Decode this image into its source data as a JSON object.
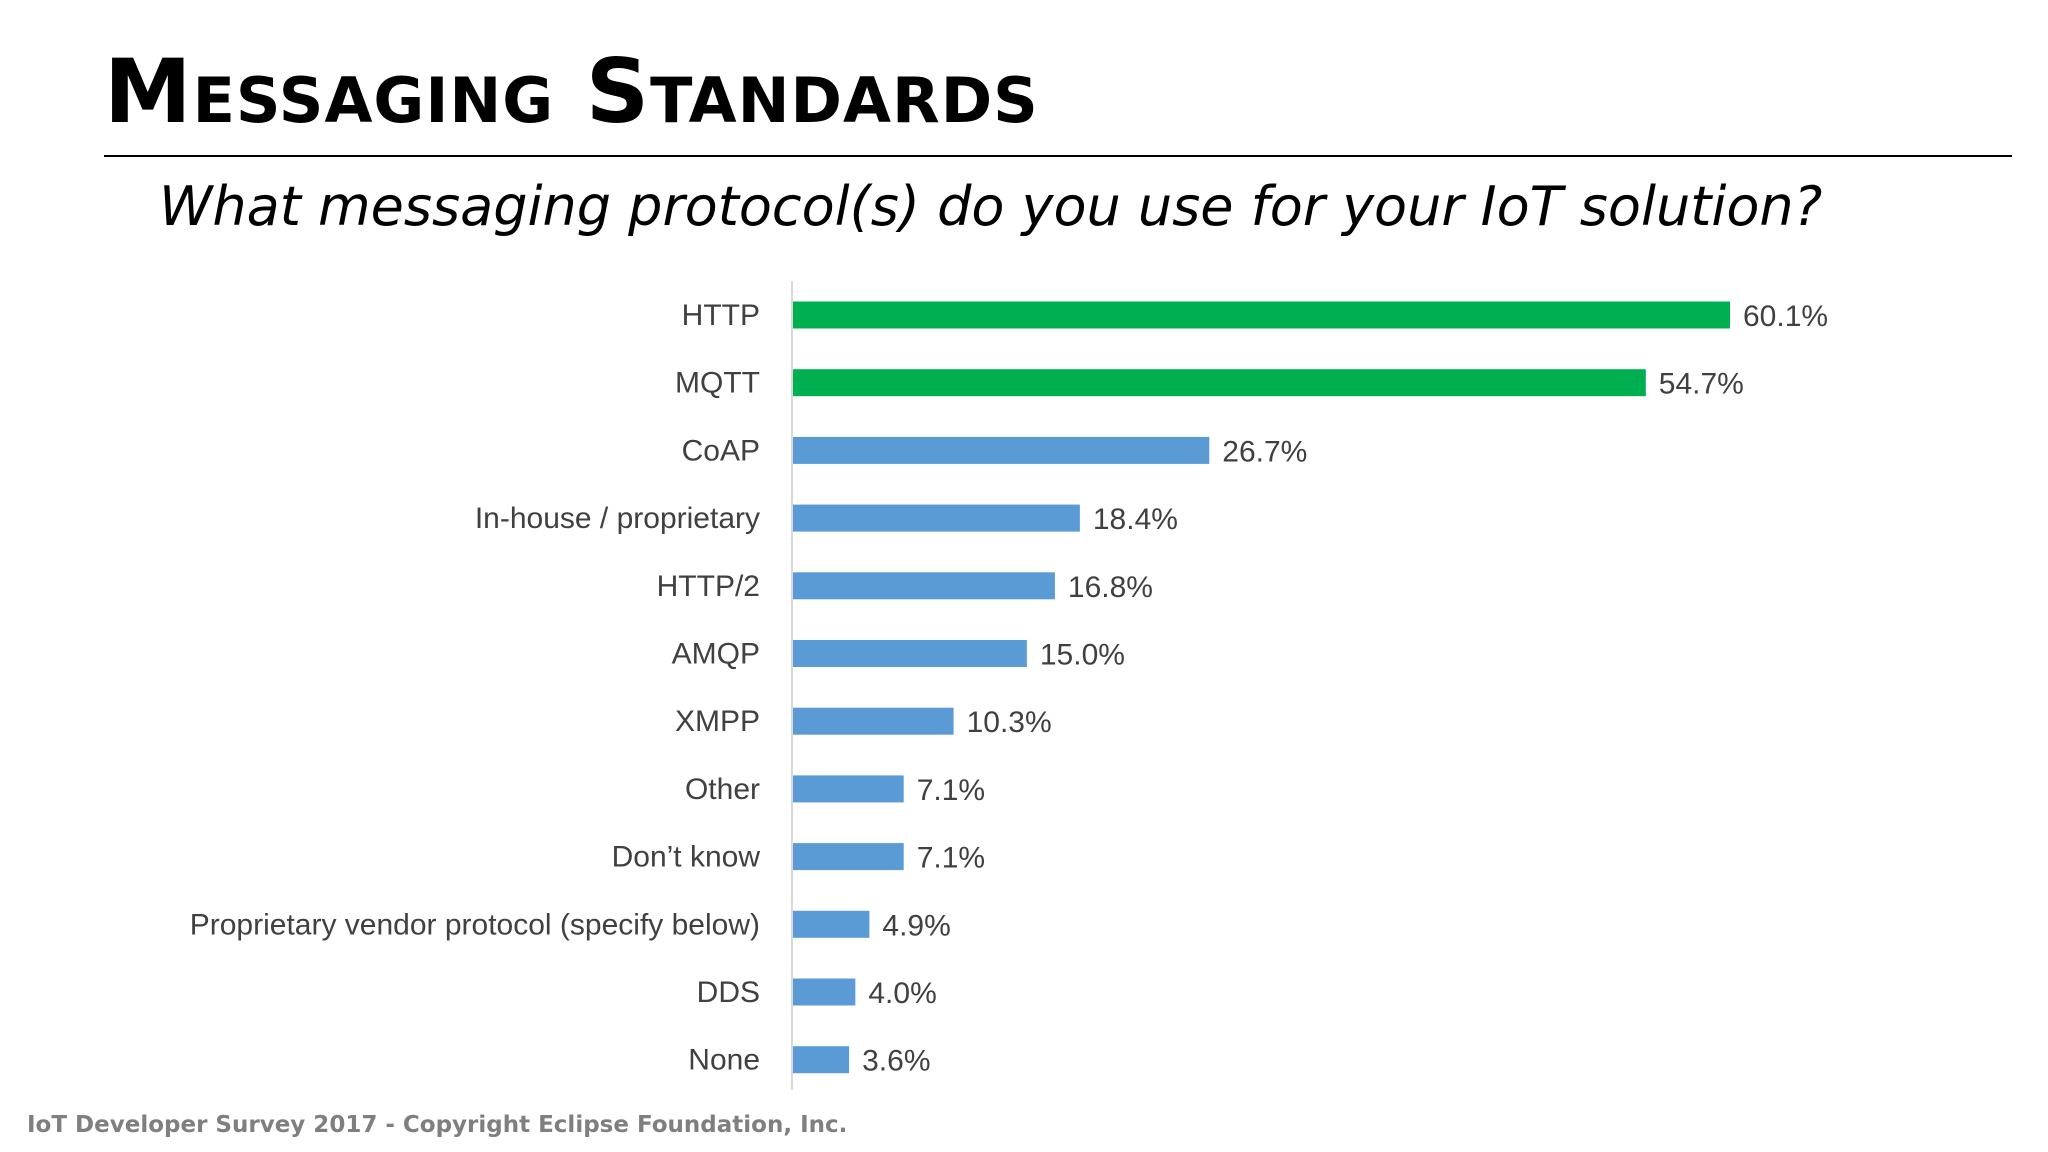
{
  "slide": {
    "title": "Messaging Standards",
    "subtitle": "What messaging protocol(s) do you use for your IoT solution?",
    "footer": "IoT Developer Survey 2017 - Copyright Eclipse Foundation, Inc."
  },
  "colors": {
    "highlight_bar": "#00b050",
    "default_bar": "#5b9bd5",
    "axis_line": "#d9d9d9",
    "label_text": "#404040"
  },
  "chart_data": {
    "type": "bar",
    "orientation": "horizontal",
    "title": "",
    "xlabel": "",
    "ylabel": "",
    "unit": "%",
    "categories": [
      "HTTP",
      "MQTT",
      "CoAP",
      "In-house / proprietary",
      "HTTP/2",
      "AMQP",
      "XMPP",
      "Other",
      "Don’t know",
      "Proprietary vendor protocol (specify below)",
      "DDS",
      "None"
    ],
    "values": [
      60.1,
      54.7,
      26.7,
      18.4,
      16.8,
      15.0,
      10.3,
      7.1,
      7.1,
      4.9,
      4.0,
      3.6
    ],
    "value_labels": [
      "60.1%",
      "54.7%",
      "26.7%",
      "18.4%",
      "16.8%",
      "15.0%",
      "10.3%",
      "7.1%",
      "7.1%",
      "4.9%",
      "4.0%",
      "3.6%"
    ],
    "highlighted": [
      true,
      true,
      false,
      false,
      false,
      false,
      false,
      false,
      false,
      false,
      false,
      false
    ],
    "xlim": [
      0,
      60.1
    ],
    "grid": false,
    "legend": "none"
  }
}
